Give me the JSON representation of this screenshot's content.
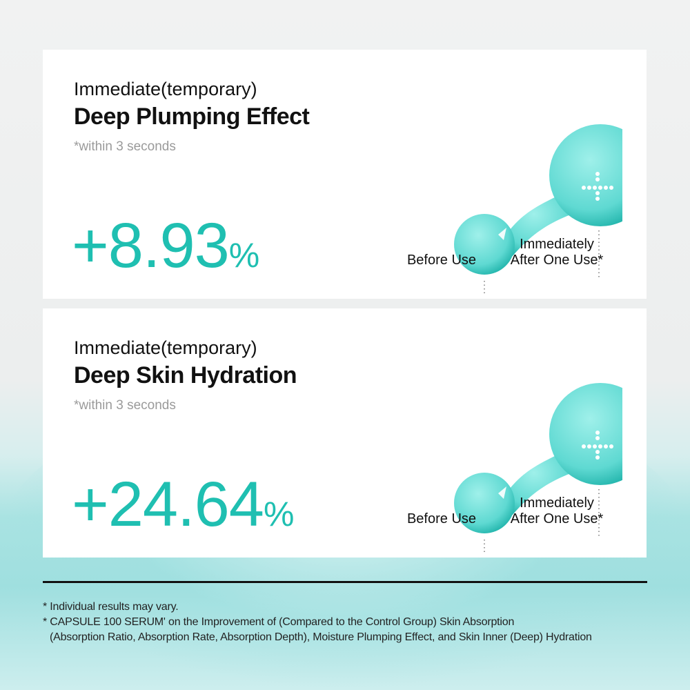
{
  "cards": [
    {
      "title_line1": "Immediate(temporary)",
      "title_line2": "Deep Plumping Effect",
      "subtitle": "*within 3 seconds",
      "value": "+8.93",
      "unit": "%",
      "before_label": "Before Use",
      "after_label_line1": "Immediately",
      "after_label_line2": "After One Use*"
    },
    {
      "title_line1": "Immediate(temporary)",
      "title_line2": "Deep Skin Hydration",
      "subtitle": "*within 3 seconds",
      "value": "+24.64",
      "unit": "%",
      "before_label": "Before Use",
      "after_label_line1": "Immediately",
      "after_label_line2": "After One Use*"
    }
  ],
  "footnotes": [
    "* Individual results may vary.",
    "* CAPSULE 100 SERUM' on the Improvement of (Compared to the Control Group) Skin Absorption",
    "(Absorption Ratio, Absorption Rate, Absorption Depth), Moisture Plumping Effect, and Skin Inner (Deep) Hydration"
  ],
  "colors": {
    "accent": "#1fbfb1",
    "droplet": "#5fd9d2"
  }
}
